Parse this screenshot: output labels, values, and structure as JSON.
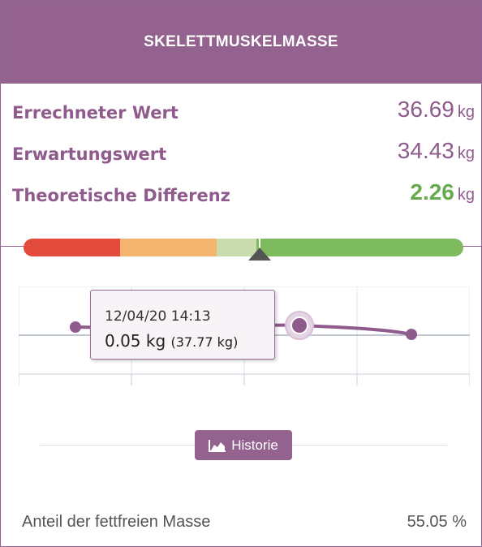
{
  "header": {
    "title": "SKELETTMUSKELMASSE"
  },
  "rows": [
    {
      "label": "Errechneter Wert",
      "value": "36.69",
      "unit": "kg"
    },
    {
      "label": "Erwartungswert",
      "value": "34.43",
      "unit": "kg"
    },
    {
      "label": "Theoretische Differenz",
      "value": "2.26",
      "unit": "kg"
    }
  ],
  "colors": {
    "brand": "#94628f",
    "label": "#8f5a8c",
    "positive": "#66aa50",
    "range_red": "#e24a3c",
    "range_orange": "#f3b46f",
    "range_lightgreen": "#c8dcae",
    "range_green": "#7dbb5e"
  },
  "range_indicator": {
    "position": 0.53
  },
  "chart": {
    "tooltip": {
      "date": "12/04/20 14:13",
      "value": "0.05 kg",
      "sub_value": "(37.77 kg)"
    },
    "points": [
      {
        "x": 0,
        "y": 0.12
      },
      {
        "x": 1,
        "y": 0.05
      },
      {
        "x": 2,
        "y": -0.1
      }
    ]
  },
  "history_button": {
    "label": "Historie",
    "icon": "area-chart-icon"
  },
  "footer": {
    "label": "Anteil der fettfreien Masse",
    "value": "55.05 %"
  }
}
